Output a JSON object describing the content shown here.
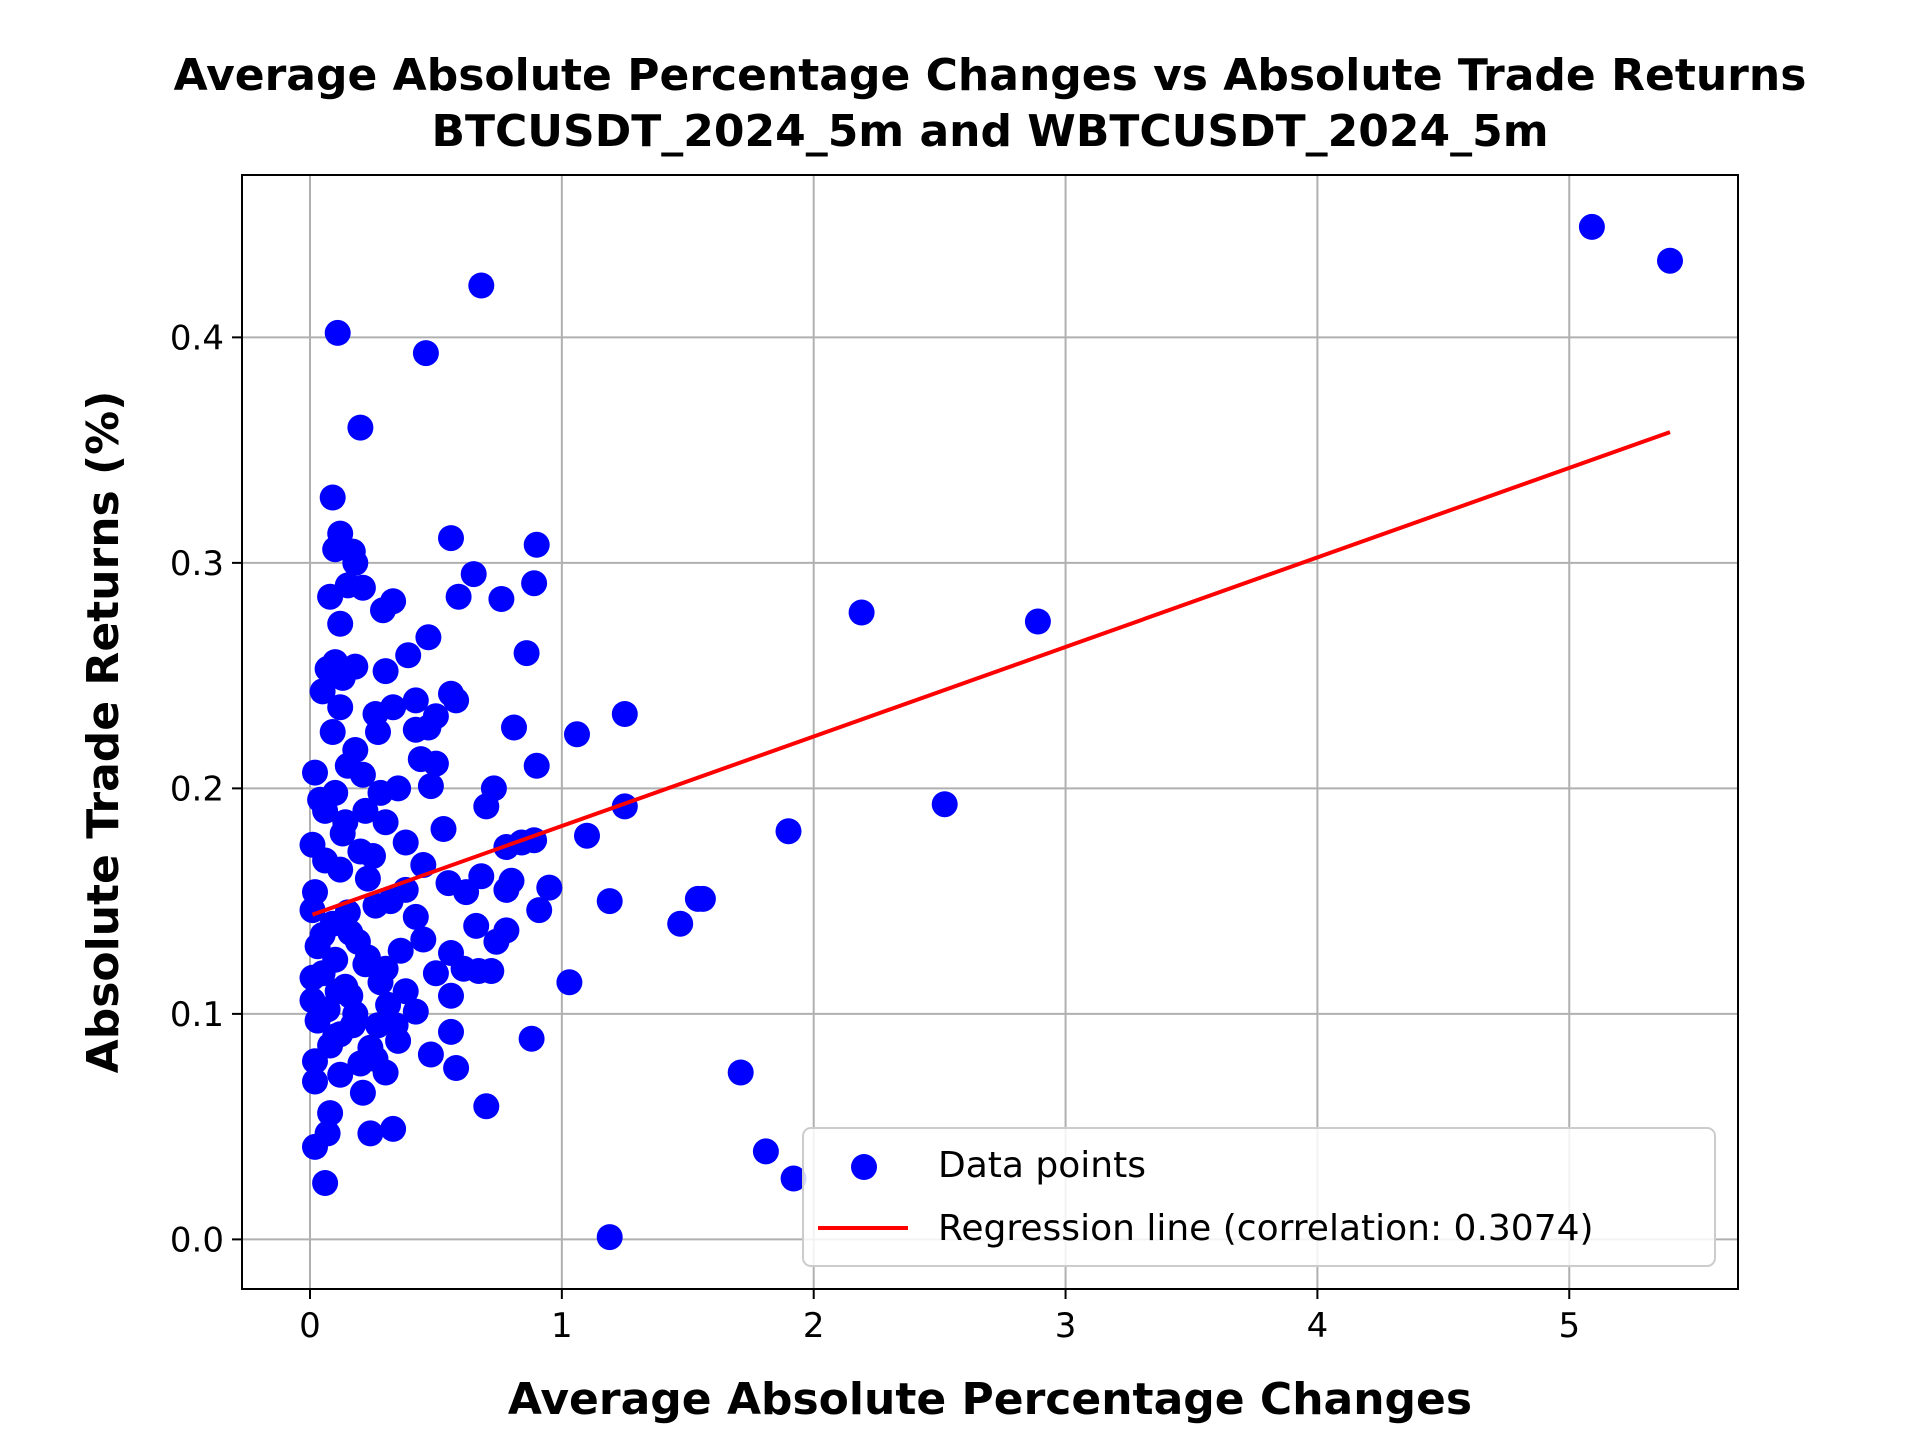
{
  "chart_data": {
    "type": "scatter",
    "title": "Average Absolute Percentage Changes vs Absolute Trade Returns",
    "subtitle": "BTCUSDT_2024_5m and WBTCUSDT_2024_5m",
    "xlabel": "Average Absolute Percentage Changes",
    "ylabel": "Absolute Trade Returns (%)",
    "xlim": [
      -0.27,
      5.67
    ],
    "ylim": [
      -0.022,
      0.472
    ],
    "xticks": [
      0,
      1,
      2,
      3,
      4,
      5
    ],
    "xtick_labels": [
      "0",
      "1",
      "2",
      "3",
      "4",
      "5"
    ],
    "yticks": [
      0.0,
      0.1,
      0.2,
      0.3,
      0.4
    ],
    "ytick_labels": [
      "0.0",
      "0.1",
      "0.2",
      "0.3",
      "0.4"
    ],
    "grid": true,
    "legend_position": "lower-right",
    "colors": {
      "points": "#0000ff",
      "regression": "#ff0000"
    },
    "series": [
      {
        "name": "Data points",
        "kind": "scatter",
        "points": [
          [
            5.09,
            0.449
          ],
          [
            5.4,
            0.434
          ],
          [
            0.68,
            0.423
          ],
          [
            0.11,
            0.402
          ],
          [
            0.46,
            0.393
          ],
          [
            0.2,
            0.36
          ],
          [
            0.09,
            0.329
          ],
          [
            0.12,
            0.313
          ],
          [
            0.56,
            0.311
          ],
          [
            0.9,
            0.308
          ],
          [
            0.1,
            0.306
          ],
          [
            0.17,
            0.305
          ],
          [
            0.18,
            0.3
          ],
          [
            0.65,
            0.295
          ],
          [
            0.89,
            0.291
          ],
          [
            0.15,
            0.29
          ],
          [
            0.21,
            0.289
          ],
          [
            0.08,
            0.285
          ],
          [
            0.33,
            0.283
          ],
          [
            0.76,
            0.284
          ],
          [
            0.59,
            0.285
          ],
          [
            0.29,
            0.279
          ],
          [
            2.19,
            0.278
          ],
          [
            2.89,
            0.274
          ],
          [
            0.12,
            0.273
          ],
          [
            0.47,
            0.267
          ],
          [
            0.86,
            0.26
          ],
          [
            0.39,
            0.259
          ],
          [
            0.1,
            0.256
          ],
          [
            0.18,
            0.254
          ],
          [
            0.07,
            0.253
          ],
          [
            0.3,
            0.252
          ],
          [
            0.13,
            0.249
          ],
          [
            0.05,
            0.243
          ],
          [
            0.56,
            0.242
          ],
          [
            0.58,
            0.239
          ],
          [
            0.42,
            0.239
          ],
          [
            0.33,
            0.236
          ],
          [
            0.12,
            0.236
          ],
          [
            1.25,
            0.233
          ],
          [
            0.5,
            0.232
          ],
          [
            0.26,
            0.233
          ],
          [
            0.81,
            0.227
          ],
          [
            0.42,
            0.226
          ],
          [
            0.47,
            0.227
          ],
          [
            0.27,
            0.225
          ],
          [
            1.06,
            0.224
          ],
          [
            0.09,
            0.225
          ],
          [
            0.18,
            0.217
          ],
          [
            0.44,
            0.213
          ],
          [
            0.5,
            0.211
          ],
          [
            0.9,
            0.21
          ],
          [
            0.15,
            0.21
          ],
          [
            0.02,
            0.207
          ],
          [
            0.21,
            0.206
          ],
          [
            0.35,
            0.2
          ],
          [
            0.73,
            0.2
          ],
          [
            0.48,
            0.201
          ],
          [
            0.28,
            0.198
          ],
          [
            0.1,
            0.198
          ],
          [
            2.52,
            0.193
          ],
          [
            1.25,
            0.192
          ],
          [
            0.7,
            0.192
          ],
          [
            0.06,
            0.19
          ],
          [
            0.3,
            0.185
          ],
          [
            1.9,
            0.181
          ],
          [
            0.53,
            0.182
          ],
          [
            1.1,
            0.179
          ],
          [
            0.89,
            0.177
          ],
          [
            0.84,
            0.176
          ],
          [
            0.78,
            0.174
          ],
          [
            0.38,
            0.176
          ],
          [
            0.01,
            0.175
          ],
          [
            0.2,
            0.172
          ],
          [
            0.45,
            0.166
          ],
          [
            0.12,
            0.164
          ],
          [
            0.68,
            0.161
          ],
          [
            0.8,
            0.159
          ],
          [
            0.55,
            0.158
          ],
          [
            0.95,
            0.156
          ],
          [
            0.38,
            0.155
          ],
          [
            0.78,
            0.155
          ],
          [
            0.62,
            0.154
          ],
          [
            0.02,
            0.154
          ],
          [
            1.54,
            0.151
          ],
          [
            1.56,
            0.151
          ],
          [
            1.19,
            0.15
          ],
          [
            0.26,
            0.148
          ],
          [
            0.91,
            0.146
          ],
          [
            0.01,
            0.146
          ],
          [
            0.42,
            0.143
          ],
          [
            1.47,
            0.14
          ],
          [
            0.66,
            0.139
          ],
          [
            0.78,
            0.137
          ],
          [
            0.16,
            0.136
          ],
          [
            0.45,
            0.133
          ],
          [
            0.74,
            0.132
          ],
          [
            0.03,
            0.13
          ],
          [
            0.36,
            0.128
          ],
          [
            0.56,
            0.127
          ],
          [
            0.1,
            0.124
          ],
          [
            0.22,
            0.122
          ],
          [
            0.61,
            0.12
          ],
          [
            0.5,
            0.118
          ],
          [
            0.72,
            0.119
          ],
          [
            0.67,
            0.119
          ],
          [
            0.01,
            0.116
          ],
          [
            0.28,
            0.114
          ],
          [
            1.03,
            0.114
          ],
          [
            0.14,
            0.112
          ],
          [
            0.56,
            0.108
          ],
          [
            0.01,
            0.106
          ],
          [
            0.31,
            0.104
          ],
          [
            0.42,
            0.101
          ],
          [
            0.18,
            0.1
          ],
          [
            0.03,
            0.097
          ],
          [
            0.56,
            0.092
          ],
          [
            0.88,
            0.089
          ],
          [
            0.12,
            0.091
          ],
          [
            0.35,
            0.088
          ],
          [
            0.24,
            0.085
          ],
          [
            0.48,
            0.082
          ],
          [
            0.02,
            0.079
          ],
          [
            0.58,
            0.076
          ],
          [
            0.3,
            0.074
          ],
          [
            1.71,
            0.074
          ],
          [
            0.12,
            0.073
          ],
          [
            0.02,
            0.07
          ],
          [
            0.21,
            0.065
          ],
          [
            0.7,
            0.059
          ],
          [
            0.08,
            0.056
          ],
          [
            0.33,
            0.049
          ],
          [
            0.07,
            0.047
          ],
          [
            0.24,
            0.047
          ],
          [
            1.81,
            0.039
          ],
          [
            0.02,
            0.041
          ],
          [
            1.92,
            0.027
          ],
          [
            0.06,
            0.025
          ],
          [
            1.19,
            0.001
          ],
          [
            0.14,
            0.185
          ],
          [
            0.06,
            0.168
          ],
          [
            0.23,
            0.16
          ],
          [
            0.09,
            0.14
          ],
          [
            0.19,
            0.132
          ],
          [
            0.05,
            0.118
          ],
          [
            0.16,
            0.108
          ],
          [
            0.27,
            0.095
          ],
          [
            0.08,
            0.086
          ],
          [
            0.2,
            0.078
          ],
          [
            0.04,
            0.195
          ],
          [
            0.13,
            0.18
          ],
          [
            0.25,
            0.17
          ],
          [
            0.32,
            0.15
          ],
          [
            0.15,
            0.145
          ],
          [
            0.05,
            0.135
          ],
          [
            0.23,
            0.125
          ],
          [
            0.11,
            0.11
          ],
          [
            0.3,
            0.12
          ],
          [
            0.17,
            0.095
          ],
          [
            0.07,
            0.102
          ],
          [
            0.34,
            0.095
          ],
          [
            0.26,
            0.08
          ],
          [
            0.1,
            0.09
          ],
          [
            0.38,
            0.11
          ],
          [
            0.22,
            0.19
          ]
        ]
      },
      {
        "name": "Regression line (correlation: 0.3074)",
        "kind": "line",
        "points": [
          [
            0.01,
            0.144
          ],
          [
            5.4,
            0.358
          ]
        ]
      }
    ]
  }
}
